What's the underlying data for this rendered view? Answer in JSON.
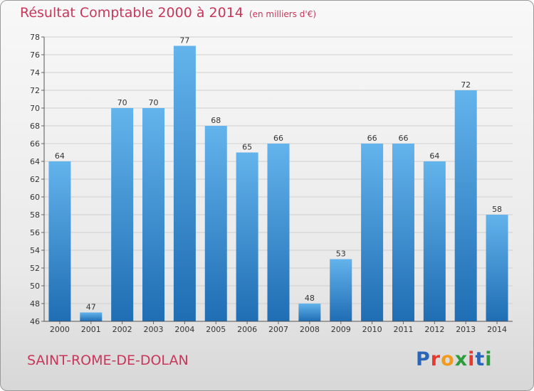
{
  "header": {
    "title": "Résultat Comptable 2000 à 2014",
    "unit": "(en milliers d'€)"
  },
  "footer": {
    "commune": "SAINT-ROME-DE-DOLAN",
    "brand": "Proxiti",
    "brand_colors": [
      "#2a66b8",
      "#e8392e",
      "#f29a1c",
      "#2e9b3c",
      "#e8392e",
      "#2a66b8",
      "#2e9b3c"
    ]
  },
  "colors": {
    "title": "#c8365a",
    "bar_light": "#63b3ec",
    "bar_dark": "#1f6db3",
    "grid": "#cfcfcf"
  },
  "chart_data": {
    "type": "bar",
    "title": "Résultat Comptable 2000 à 2014",
    "subtitle": "(en milliers d'€)",
    "categories": [
      "2000",
      "2001",
      "2002",
      "2003",
      "2004",
      "2005",
      "2006",
      "2007",
      "2008",
      "2009",
      "2010",
      "2011",
      "2012",
      "2013",
      "2014"
    ],
    "values": [
      64,
      47,
      70,
      70,
      77,
      68,
      65,
      66,
      48,
      53,
      66,
      66,
      64,
      72,
      58
    ],
    "ylim": [
      46,
      78
    ],
    "yticks": [
      46,
      48,
      50,
      52,
      54,
      56,
      58,
      60,
      62,
      64,
      66,
      68,
      70,
      72,
      74,
      76,
      78
    ],
    "xlabel": "",
    "ylabel": "",
    "grid": true
  }
}
